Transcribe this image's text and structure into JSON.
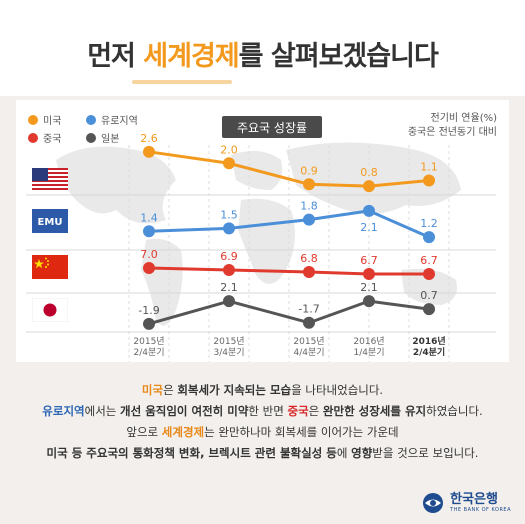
{
  "header": {
    "title_prefix": "먼저 ",
    "title_highlight": "세계경제",
    "title_suffix": "를 살펴보겠습니다"
  },
  "legend": [
    {
      "label": "미국",
      "color": "#f39a1e"
    },
    {
      "label": "유로지역",
      "color": "#4a8fd8"
    },
    {
      "label": "중국",
      "color": "#e03a2f"
    },
    {
      "label": "일본",
      "color": "#555555"
    }
  ],
  "chart_data": {
    "type": "line",
    "title": "주요국 성장률",
    "note_lines": [
      "전기비 연율(%)",
      "중국은 전년동기 대비"
    ],
    "categories": [
      "2015년\n2/4분기",
      "2015년\n3/4분기",
      "2015년\n4/4분기",
      "2016년\n1/4분기",
      "2016년\n2/4분기"
    ],
    "series": [
      {
        "name": "미국",
        "flag": "us-flag",
        "color": "#f39a1e",
        "values": [
          2.6,
          2.0,
          0.9,
          0.8,
          1.1
        ]
      },
      {
        "name": "유로지역",
        "flag": "emu-flag",
        "color": "#4a8fd8",
        "values": [
          1.4,
          1.5,
          1.8,
          2.1,
          1.2
        ]
      },
      {
        "name": "중국",
        "flag": "china-flag",
        "color": "#e03a2f",
        "values": [
          7.0,
          6.9,
          6.8,
          6.7,
          6.7
        ]
      },
      {
        "name": "일본",
        "flag": "japan-flag",
        "color": "#555555",
        "values": [
          -1.9,
          2.1,
          -1.7,
          2.1,
          0.7
        ]
      }
    ]
  },
  "emu_flag_text": "EMU",
  "summary": {
    "line1": {
      "a": "미국",
      "b": "은 ",
      "c": "회복세가 지속되는 모습",
      "d": "을 나타내었습니다."
    },
    "line2": {
      "a": "유로지역",
      "b": "에서는 ",
      "c": "개선 움직임이 여전히 미약",
      "d": "한 반면 ",
      "e": "중국",
      "f": "은 ",
      "g": "완만한 성장세를 유지",
      "h": "하였습니다."
    },
    "line3": {
      "a": "앞으로 ",
      "b": "세계경제",
      "c": "는 완만하나마 회복세를 이어가는 가운데"
    },
    "line4": {
      "a": "미국 등 주요국의 통화정책 변화, 브렉시트 관련 불확실성 등",
      "b": "에 ",
      "c": "영향",
      "d": "받을 것으로 보입니다."
    }
  },
  "logo": {
    "name": "한국은행",
    "sub": "THE BANK OF KOREA"
  }
}
